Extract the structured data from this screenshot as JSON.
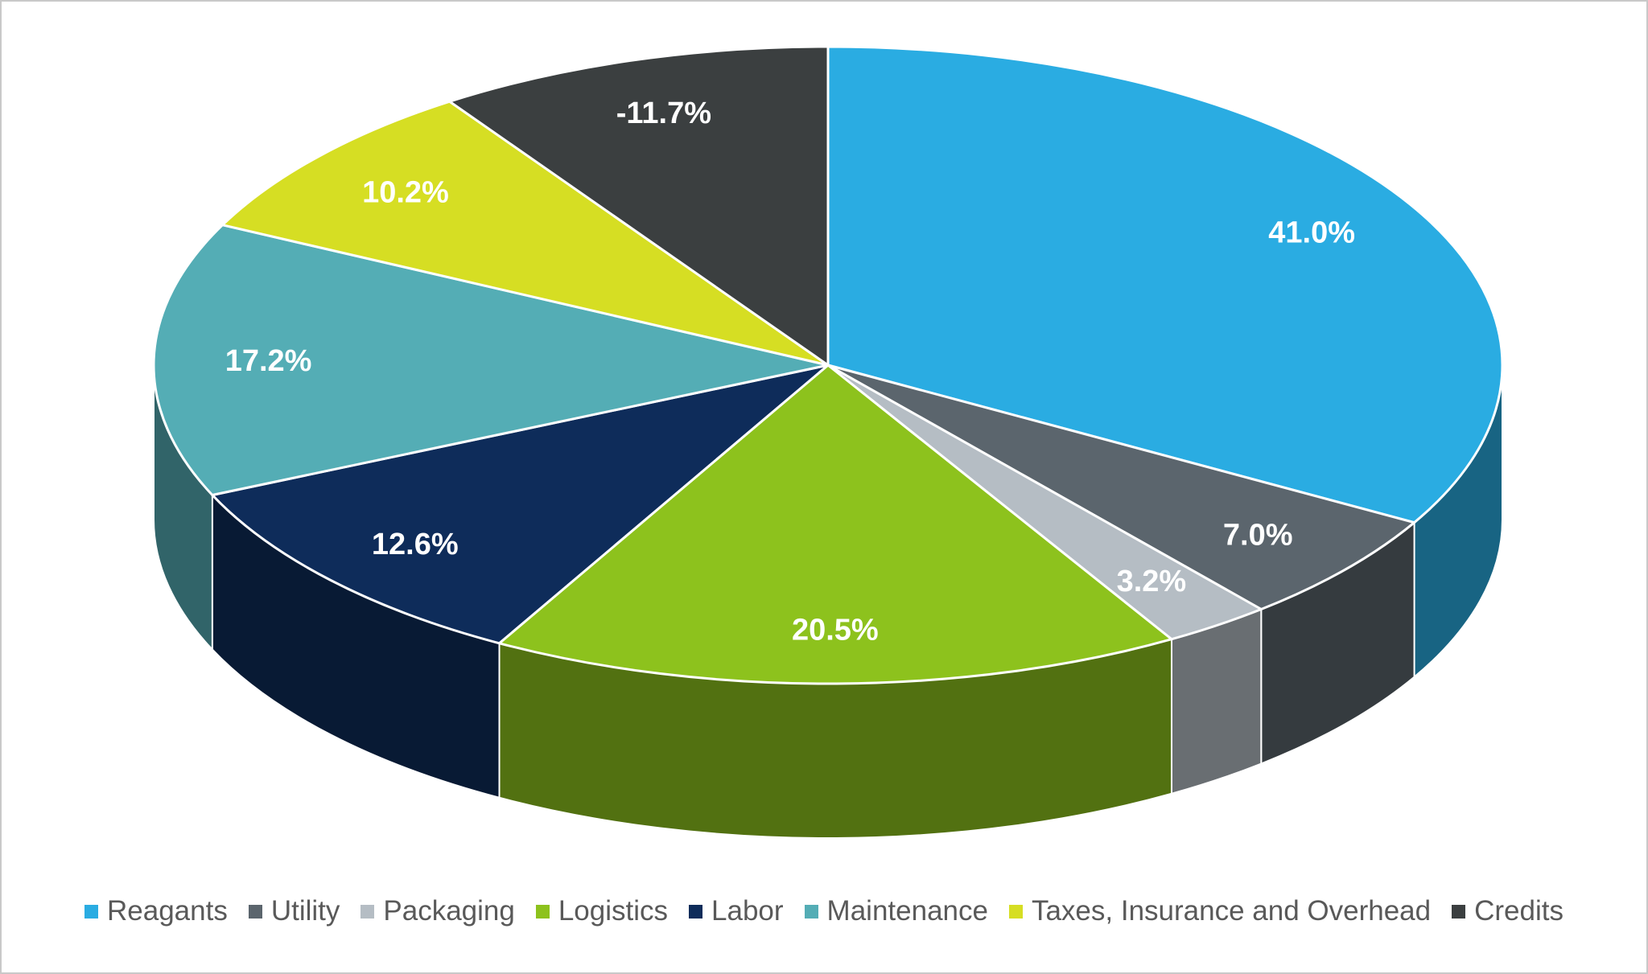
{
  "chart_data": {
    "type": "pie",
    "style": "3d",
    "title": "",
    "legend_position": "bottom",
    "start_angle_deg": 0,
    "direction": "clockwise",
    "data_label_color": "#FFFFFF",
    "legend_text_color": "#595959",
    "series": [
      {
        "label": "Reagants",
        "value": 41.0,
        "display_label": "41.0%",
        "color": "#2AACE2"
      },
      {
        "label": "Utility",
        "value": 7.0,
        "display_label": "7.0%",
        "color": "#5B656D"
      },
      {
        "label": "Packaging",
        "value": 3.2,
        "display_label": "3.2%",
        "color": "#B5BDC4"
      },
      {
        "label": "Logistics",
        "value": 20.5,
        "display_label": "20.5%",
        "color": "#8DC21D"
      },
      {
        "label": "Labor",
        "value": 12.6,
        "display_label": "12.6%",
        "color": "#0E2C5A"
      },
      {
        "label": "Maintenance",
        "value": 17.2,
        "display_label": "17.2%",
        "color": "#54ADB5"
      },
      {
        "label": "Taxes, Insurance and Overhead",
        "value": 10.2,
        "display_label": "10.2%",
        "color": "#D6DE23"
      },
      {
        "label": "Credits",
        "value": -11.7,
        "display_label": "-11.7%",
        "color": "#3B3F40"
      }
    ]
  }
}
